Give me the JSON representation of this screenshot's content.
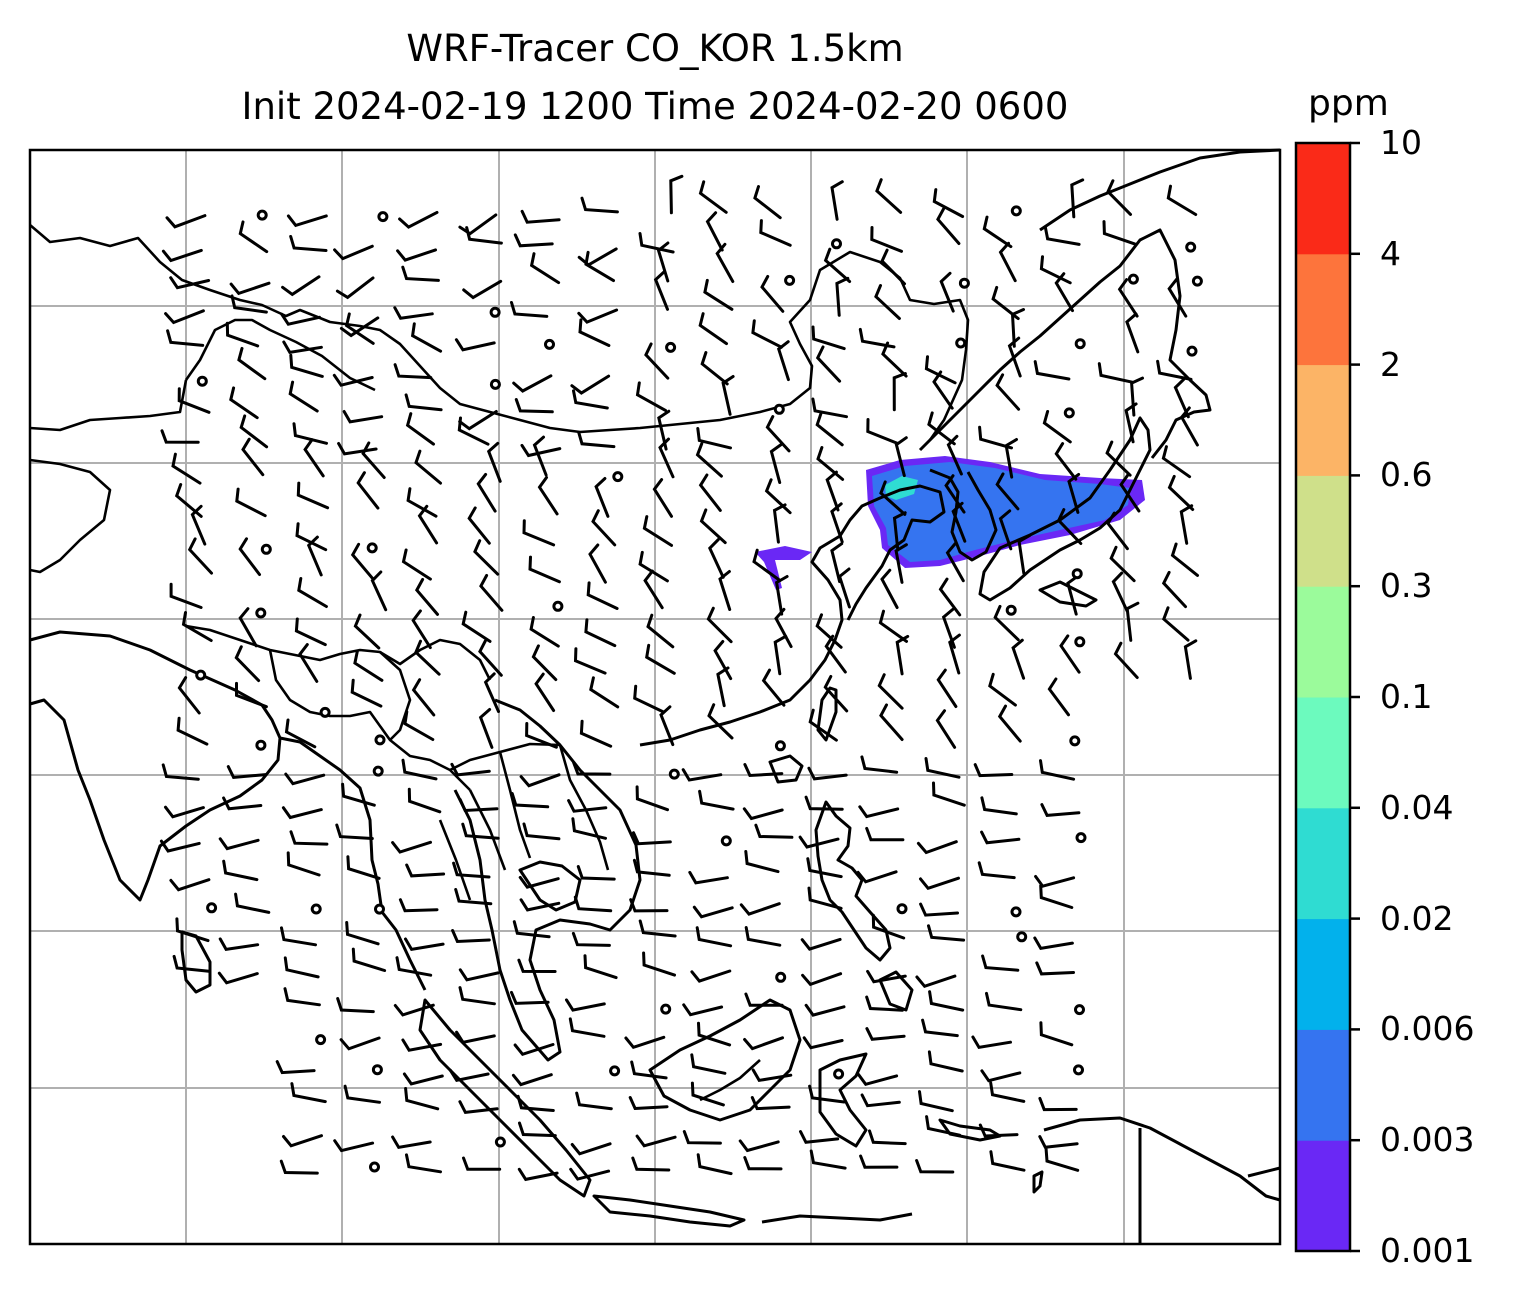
{
  "title": {
    "line1": "WRF-Tracer CO_KOR 1.5km",
    "line2": "Init 2024-02-19 1200 Time 2024-02-20 0600"
  },
  "colorbar": {
    "unit": "ppm",
    "levels": [
      "0.001",
      "0.003",
      "0.006",
      "0.02",
      "0.04",
      "0.1",
      "0.3",
      "0.6",
      "2",
      "4",
      "10"
    ],
    "colors": [
      "#6a28f5",
      "#3574f0",
      "#02b1ec",
      "#2fdcd2",
      "#6cfabe",
      "#9bfb9b",
      "#cfe08a",
      "#fcb466",
      "#fd743c",
      "#fa2a18"
    ]
  },
  "map": {
    "gridlines": true,
    "features": [
      "coastlines",
      "country-borders",
      "wind-barbs",
      "co-tracer-plume"
    ],
    "plume_colors": {
      "main": "#3574f0",
      "edge": "#6a28f5",
      "core": "#2fdcd2"
    }
  }
}
